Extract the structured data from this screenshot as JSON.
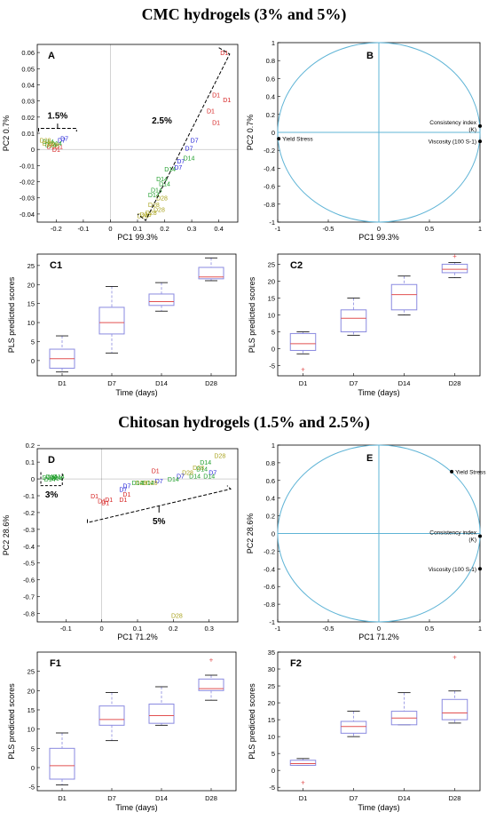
{
  "headings": {
    "cmc": "CMC hydrogels (3% and 5%)",
    "chitosan": "Chitosan hydrogels (1.5% and 2.5%)"
  },
  "colors": {
    "D1": "#d62020",
    "D7": "#2626d8",
    "D14": "#1e9e2a",
    "D28": "#a8a21c",
    "circle": "#5fb4d6",
    "box": "#8a8ae0",
    "median": "#e25050",
    "outlier": "#e25050"
  },
  "chart_data": [
    {
      "id": "A",
      "type": "scatter",
      "panel_label": "A",
      "xlabel": "PC1   99.3%",
      "ylabel": "PC2   0.7%",
      "xlim": [
        -0.27,
        0.47
      ],
      "ylim": [
        -0.045,
        0.065
      ],
      "xticks": [
        -0.2,
        -0.1,
        0,
        0.1,
        0.2,
        0.3,
        0.4
      ],
      "yticks": [
        -0.04,
        -0.03,
        -0.02,
        -0.01,
        0,
        0.01,
        0.02,
        0.03,
        0.04,
        0.05,
        0.06
      ],
      "annotations": [
        "1.5%",
        "2.5%"
      ],
      "points": [
        {
          "t": "D1",
          "x": 0.42,
          "y": 0.06
        },
        {
          "t": "D1",
          "x": 0.39,
          "y": 0.034
        },
        {
          "t": "D1",
          "x": 0.43,
          "y": 0.031
        },
        {
          "t": "D1",
          "x": 0.37,
          "y": 0.024
        },
        {
          "t": "D1",
          "x": 0.39,
          "y": 0.017
        },
        {
          "t": "D7",
          "x": 0.31,
          "y": 0.006
        },
        {
          "t": "D7",
          "x": 0.29,
          "y": 0.001
        },
        {
          "t": "D7",
          "x": 0.26,
          "y": -0.007
        },
        {
          "t": "D7",
          "x": 0.25,
          "y": -0.011
        },
        {
          "t": "D14",
          "x": 0.29,
          "y": -0.005
        },
        {
          "t": "D14",
          "x": 0.22,
          "y": -0.012
        },
        {
          "t": "D14",
          "x": 0.19,
          "y": -0.018
        },
        {
          "t": "D14",
          "x": 0.2,
          "y": -0.021
        },
        {
          "t": "D14",
          "x": 0.17,
          "y": -0.025
        },
        {
          "t": "D14",
          "x": 0.16,
          "y": -0.028
        },
        {
          "t": "D28",
          "x": 0.19,
          "y": -0.03
        },
        {
          "t": "D28",
          "x": 0.16,
          "y": -0.034
        },
        {
          "t": "D28",
          "x": 0.18,
          "y": -0.037
        },
        {
          "t": "D28",
          "x": 0.13,
          "y": -0.04
        },
        {
          "t": "D28",
          "x": 0.15,
          "y": -0.039
        },
        {
          "t": "D28",
          "x": 0.12,
          "y": -0.041
        },
        {
          "t": "D1",
          "x": -0.19,
          "y": 0.002
        },
        {
          "t": "D1",
          "x": -0.2,
          "y": 0.0
        },
        {
          "t": "D1",
          "x": -0.22,
          "y": 0.002
        },
        {
          "t": "D7",
          "x": -0.17,
          "y": 0.007
        },
        {
          "t": "D7",
          "x": -0.18,
          "y": 0.006
        },
        {
          "t": "D14",
          "x": -0.2,
          "y": 0.004
        },
        {
          "t": "D14",
          "x": -0.23,
          "y": 0.005
        },
        {
          "t": "D14",
          "x": -0.22,
          "y": 0.003
        },
        {
          "t": "D28",
          "x": -0.24,
          "y": 0.006
        },
        {
          "t": "D28",
          "x": -0.23,
          "y": 0.004
        },
        {
          "t": "D28",
          "x": -0.21,
          "y": 0.003
        }
      ]
    },
    {
      "id": "B",
      "type": "scatter",
      "panel_label": "B",
      "xlabel": "PC1   99.3%",
      "ylabel": "PC2   0.7%",
      "xlim": [
        -1,
        1
      ],
      "ylim": [
        -1,
        1
      ],
      "xticks": [
        -1,
        -0.5,
        0,
        0.5,
        1
      ],
      "yticks": [
        -1,
        -0.8,
        -0.6,
        -0.4,
        -0.2,
        0,
        0.2,
        0.4,
        0.6,
        0.8,
        1
      ],
      "loadings": [
        {
          "name": "Yield Stress",
          "x": -0.99,
          "y": -0.07,
          "anchor": "start"
        },
        {
          "name": "Consistency index  (K)",
          "x": 1.0,
          "y": 0.07,
          "anchor": "end"
        },
        {
          "name": "Viscosity (100 S-1)",
          "x": 1.0,
          "y": -0.1,
          "anchor": "end"
        }
      ]
    },
    {
      "id": "C1",
      "type": "box",
      "panel_label": "C1",
      "xlabel": "Time (days)",
      "ylabel": "PLS predicted scores",
      "categories": [
        "D1",
        "D7",
        "D14",
        "D28"
      ],
      "ylim": [
        -4,
        28
      ],
      "yticks": [
        0,
        5,
        10,
        15,
        20,
        25
      ],
      "boxes": [
        {
          "min": -3,
          "q1": -2,
          "med": 0.5,
          "q3": 3,
          "max": 6.5,
          "out": []
        },
        {
          "min": 2,
          "q1": 7,
          "med": 10,
          "q3": 14,
          "max": 19.5,
          "out": []
        },
        {
          "min": 13,
          "q1": 14.5,
          "med": 15.5,
          "q3": 17.5,
          "max": 20.5,
          "out": []
        },
        {
          "min": 21,
          "q1": 21.5,
          "med": 22,
          "q3": 24.5,
          "max": 27,
          "out": []
        }
      ]
    },
    {
      "id": "C2",
      "type": "box",
      "panel_label": "C2",
      "xlabel": "Time (days)",
      "ylabel": "PLS predicted scores",
      "categories": [
        "D1",
        "D7",
        "D14",
        "D28"
      ],
      "ylim": [
        -8,
        28
      ],
      "yticks": [
        -5,
        0,
        5,
        10,
        15,
        20,
        25
      ],
      "boxes": [
        {
          "min": -1.5,
          "q1": -0.5,
          "med": 1.5,
          "q3": 4.5,
          "max": 5,
          "out": [
            -6
          ]
        },
        {
          "min": 4,
          "q1": 5,
          "med": 9,
          "q3": 11.5,
          "max": 15,
          "out": []
        },
        {
          "min": 10,
          "q1": 11.5,
          "med": 16,
          "q3": 19,
          "max": 21.5,
          "out": []
        },
        {
          "min": 21,
          "q1": 22.5,
          "med": 23.5,
          "q3": 25,
          "max": 25.5,
          "out": [
            27.5
          ]
        }
      ]
    },
    {
      "id": "D",
      "type": "scatter",
      "panel_label": "D",
      "xlabel": "PC1   71.2%",
      "ylabel": "PC2   28.6%",
      "xlim": [
        -0.18,
        0.38
      ],
      "ylim": [
        -0.85,
        0.18
      ],
      "xticks": [
        -0.1,
        0,
        0.1,
        0.2,
        0.3
      ],
      "yticks": [
        -0.8,
        -0.7,
        -0.6,
        -0.5,
        -0.4,
        -0.3,
        -0.2,
        -0.1,
        0,
        0.1,
        0.2
      ],
      "annotations": [
        "3%",
        "5%"
      ],
      "points": [
        {
          "t": "D28",
          "x": 0.33,
          "y": 0.14
        },
        {
          "t": "D14",
          "x": 0.29,
          "y": 0.1
        },
        {
          "t": "D28",
          "x": 0.27,
          "y": 0.07
        },
        {
          "t": "D14",
          "x": 0.28,
          "y": 0.06
        },
        {
          "t": "D7",
          "x": 0.31,
          "y": 0.04
        },
        {
          "t": "D14",
          "x": 0.3,
          "y": 0.02
        },
        {
          "t": "D14",
          "x": 0.26,
          "y": 0.02
        },
        {
          "t": "D28",
          "x": 0.24,
          "y": 0.04
        },
        {
          "t": "D1",
          "x": 0.15,
          "y": 0.05
        },
        {
          "t": "D7",
          "x": 0.22,
          "y": 0.02
        },
        {
          "t": "D14",
          "x": 0.2,
          "y": 0.0
        },
        {
          "t": "D7",
          "x": 0.16,
          "y": -0.01
        },
        {
          "t": "D28",
          "x": 0.14,
          "y": -0.02
        },
        {
          "t": "D14",
          "x": 0.13,
          "y": -0.02
        },
        {
          "t": "D28",
          "x": 0.11,
          "y": -0.02
        },
        {
          "t": "D14",
          "x": 0.1,
          "y": -0.02
        },
        {
          "t": "D7",
          "x": 0.07,
          "y": -0.04
        },
        {
          "t": "D7",
          "x": 0.06,
          "y": -0.06
        },
        {
          "t": "D1",
          "x": 0.07,
          "y": -0.09
        },
        {
          "t": "D1",
          "x": 0.06,
          "y": -0.12
        },
        {
          "t": "D1",
          "x": -0.02,
          "y": -0.1
        },
        {
          "t": "D1",
          "x": 0.0,
          "y": -0.13
        },
        {
          "t": "D1",
          "x": 0.01,
          "y": -0.14
        },
        {
          "t": "D1",
          "x": 0.02,
          "y": -0.12
        },
        {
          "t": "D28",
          "x": 0.21,
          "y": -0.81
        },
        {
          "t": "D14",
          "x": -0.15,
          "y": 0.01
        },
        {
          "t": "D14",
          "x": -0.14,
          "y": 0.015
        },
        {
          "t": "D14",
          "x": -0.13,
          "y": 0.01
        },
        {
          "t": "D14",
          "x": -0.12,
          "y": 0.015
        },
        {
          "t": "D14",
          "x": -0.145,
          "y": 0.0
        },
        {
          "t": "D14",
          "x": -0.125,
          "y": 0.005
        }
      ]
    },
    {
      "id": "E",
      "type": "scatter",
      "panel_label": "E",
      "xlabel": "PC1   71.2%",
      "ylabel": "PC2   28.6%",
      "xlim": [
        -1,
        1
      ],
      "ylim": [
        -1,
        1
      ],
      "xticks": [
        -1,
        -0.5,
        0,
        0.5,
        1
      ],
      "yticks": [
        -1,
        -0.8,
        -0.6,
        -0.4,
        -0.2,
        0,
        0.2,
        0.4,
        0.6,
        0.8,
        1
      ],
      "loadings": [
        {
          "name": "Yield Stress",
          "x": 0.72,
          "y": 0.7,
          "anchor": "start"
        },
        {
          "name": "Consistency index  (K)",
          "x": 1.0,
          "y": -0.03,
          "anchor": "end"
        },
        {
          "name": "Viscosity (100 S-1)",
          "x": 1.0,
          "y": -0.4,
          "anchor": "end"
        }
      ]
    },
    {
      "id": "F1",
      "type": "box",
      "panel_label": "F1",
      "xlabel": "Time (days)",
      "ylabel": "PLS predicted scores",
      "categories": [
        "D1",
        "D7",
        "D14",
        "D28"
      ],
      "ylim": [
        -6,
        30
      ],
      "yticks": [
        -5,
        0,
        5,
        10,
        15,
        20,
        25
      ],
      "boxes": [
        {
          "min": -4.5,
          "q1": -3,
          "med": 0.5,
          "q3": 5,
          "max": 9,
          "out": []
        },
        {
          "min": 7,
          "q1": 11,
          "med": 12.5,
          "q3": 16,
          "max": 19.5,
          "out": []
        },
        {
          "min": 11,
          "q1": 11.5,
          "med": 13.5,
          "q3": 16.5,
          "max": 21,
          "out": []
        },
        {
          "min": 17.5,
          "q1": 20,
          "med": 20.5,
          "q3": 23,
          "max": 24,
          "out": [
            28
          ]
        }
      ]
    },
    {
      "id": "F2",
      "type": "box",
      "panel_label": "F2",
      "xlabel": "Time (days)",
      "ylabel": "PLS predicted scores",
      "categories": [
        "D1",
        "D7",
        "D14",
        "D28"
      ],
      "ylim": [
        -6,
        35
      ],
      "yticks": [
        -5,
        0,
        5,
        10,
        15,
        20,
        25,
        30,
        35
      ],
      "boxes": [
        {
          "min": 1.5,
          "q1": 1.5,
          "med": 2,
          "q3": 3,
          "max": 3.5,
          "out": [
            -3.5
          ]
        },
        {
          "min": 10,
          "q1": 11,
          "med": 13,
          "q3": 14.5,
          "max": 17.5,
          "out": []
        },
        {
          "min": 13.5,
          "q1": 13.5,
          "med": 15.5,
          "q3": 17.5,
          "max": 23,
          "out": []
        },
        {
          "min": 14,
          "q1": 15,
          "med": 17,
          "q3": 21,
          "max": 23.5,
          "out": [
            33.5
          ]
        }
      ]
    }
  ]
}
